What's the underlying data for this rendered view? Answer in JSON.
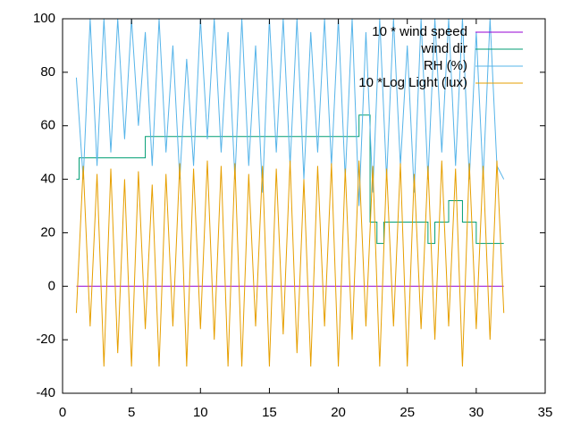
{
  "chart_data": {
    "type": "line",
    "xlim": [
      0,
      35
    ],
    "xticks": [
      0,
      5,
      10,
      15,
      20,
      25,
      30,
      35
    ],
    "ylim": [
      -40,
      100
    ],
    "yticks": [
      -40,
      -20,
      0,
      20,
      40,
      60,
      80,
      100
    ],
    "legend": "top-right",
    "series": [
      {
        "name": "10 * wind speed",
        "color": "#9400d3",
        "x": [
          1,
          32
        ],
        "values": [
          0,
          0
        ]
      },
      {
        "name": "wind dir",
        "color": "#009e73",
        "x": [
          1,
          1.2,
          1.2,
          6,
          6,
          21.5,
          21.5,
          22.3,
          22.3,
          22.8,
          22.8,
          23.3,
          23.3,
          24,
          24,
          26.5,
          26.5,
          27,
          27,
          28,
          28,
          29,
          29,
          30,
          30,
          32
        ],
        "values": [
          40,
          40,
          48,
          48,
          56,
          56,
          64,
          64,
          24,
          24,
          16,
          16,
          24,
          24,
          24,
          24,
          16,
          16,
          24,
          24,
          32,
          32,
          24,
          24,
          16,
          16
        ]
      },
      {
        "name": "RH (%)",
        "color": "#56b4e9",
        "x": [
          1,
          1.5,
          2,
          2.5,
          3,
          3.5,
          4,
          4.5,
          5,
          5.5,
          6,
          6.5,
          7,
          7.5,
          8,
          8.5,
          9,
          9.5,
          10,
          10.5,
          11,
          11.5,
          12,
          12.5,
          13,
          13.5,
          14,
          14.5,
          15,
          15.5,
          16,
          16.5,
          17,
          17.5,
          18,
          18.5,
          19,
          19.5,
          20,
          20.5,
          21,
          21.5,
          22,
          22.5,
          23,
          23.5,
          24,
          24.5,
          25,
          25.5,
          26,
          26.5,
          27,
          27.5,
          28,
          28.5,
          29,
          29.5,
          30,
          30.5,
          31,
          31.5,
          32
        ],
        "values": [
          78,
          40,
          100,
          45,
          100,
          50,
          100,
          55,
          100,
          60,
          95,
          45,
          100,
          50,
          90,
          40,
          85,
          45,
          100,
          55,
          100,
          50,
          95,
          40,
          100,
          45,
          90,
          35,
          100,
          50,
          100,
          45,
          100,
          40,
          95,
          50,
          100,
          45,
          100,
          40,
          100,
          30,
          95,
          35,
          100,
          40,
          100,
          45,
          90,
          35,
          100,
          40,
          100,
          50,
          100,
          45,
          100,
          40,
          95,
          40,
          100,
          45,
          40
        ]
      },
      {
        "name": "10 *Log Light (lux)",
        "color": "#e69f00",
        "x": [
          1,
          1.5,
          2,
          2.5,
          3,
          3.5,
          4,
          4.5,
          5,
          5.5,
          6,
          6.5,
          7,
          7.5,
          8,
          8.5,
          9,
          9.5,
          10,
          10.5,
          11,
          11.5,
          12,
          12.5,
          13,
          13.5,
          14,
          14.5,
          15,
          15.5,
          16,
          16.5,
          17,
          17.5,
          18,
          18.5,
          19,
          19.5,
          20,
          20.5,
          21,
          21.5,
          22,
          22.5,
          23,
          23.5,
          24,
          24.5,
          25,
          25.5,
          26,
          26.5,
          27,
          27.5,
          28,
          28.5,
          29,
          29.5,
          30,
          30.5,
          31,
          31.5,
          32
        ],
        "values": [
          -10,
          45,
          -15,
          42,
          -30,
          44,
          -25,
          40,
          -30,
          43,
          -16,
          38,
          -30,
          42,
          -15,
          46,
          -30,
          44,
          -16,
          47,
          -20,
          45,
          -30,
          46,
          -30,
          42,
          -15,
          45,
          -30,
          44,
          -18,
          47,
          -25,
          40,
          -30,
          45,
          -15,
          46,
          -30,
          44,
          -20,
          47,
          -15,
          45,
          -30,
          44,
          -15,
          46,
          -30,
          42,
          -16,
          45,
          -20,
          47,
          -15,
          44,
          -30,
          46,
          -16,
          45,
          -20,
          47,
          -10
        ]
      }
    ]
  }
}
